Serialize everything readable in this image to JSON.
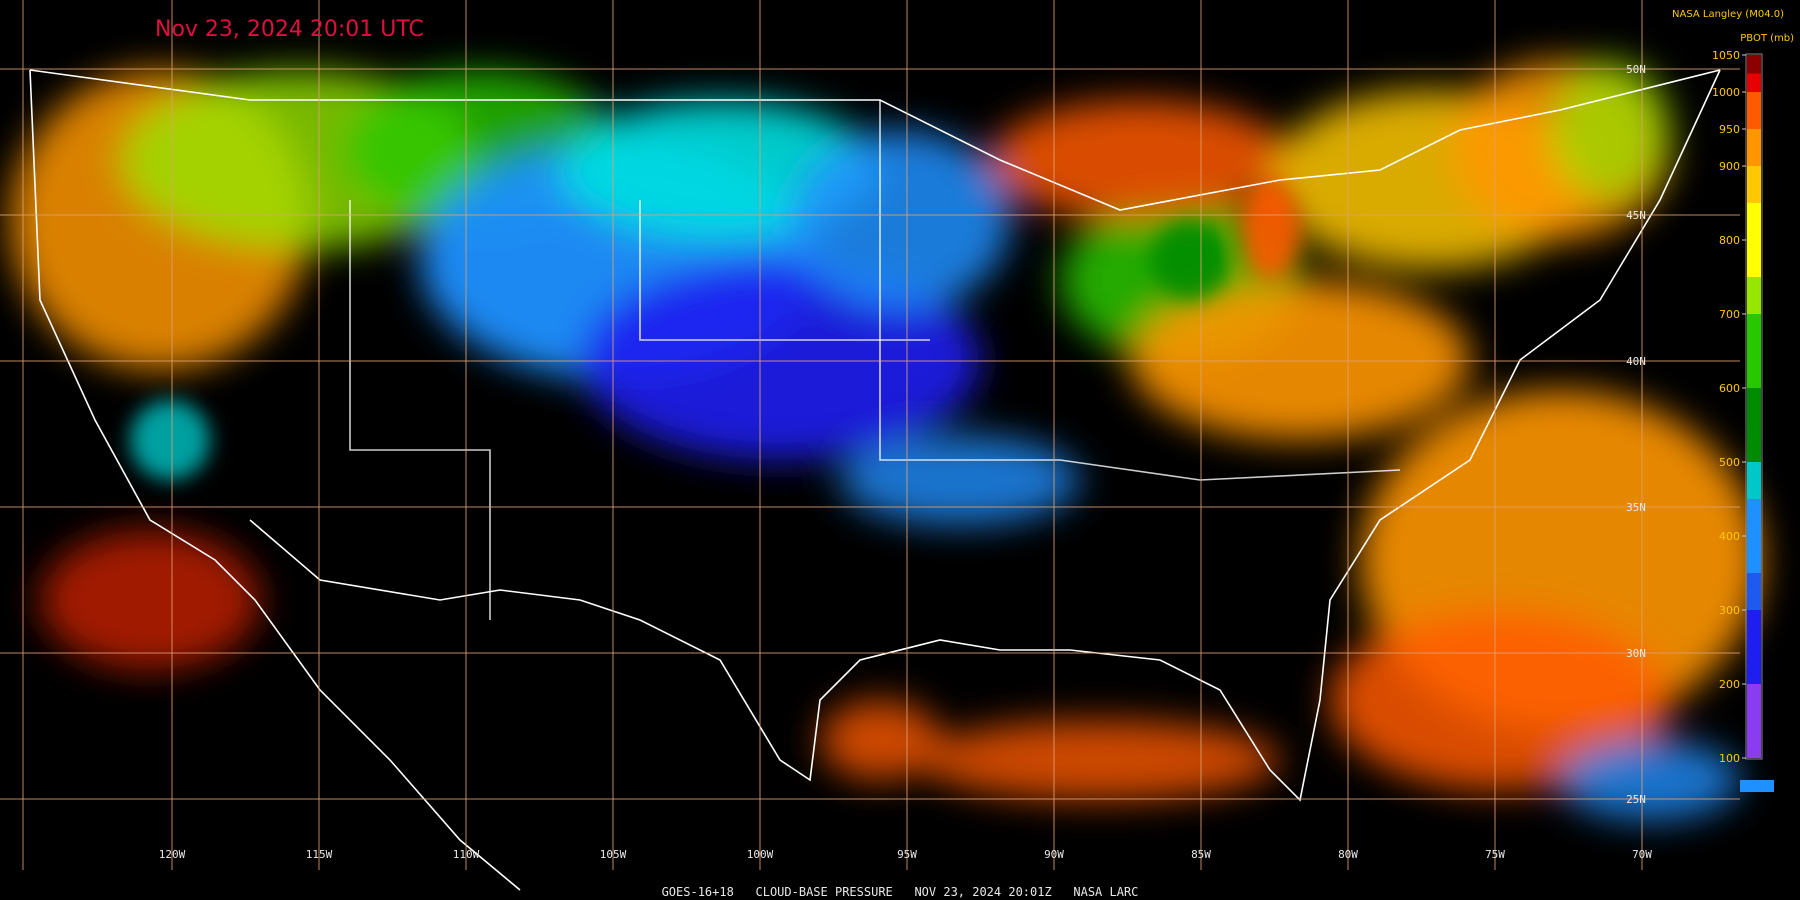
{
  "title": "Nov 23, 2024 20:01 UTC",
  "attribution": "NASA Langley (M04.0)",
  "footer": "GOES-16+18   CLOUD-BASE PRESSURE   NOV 23, 2024 20:01Z   NASA LARC",
  "colorbar": {
    "label": "PBOT (mb)",
    "range": [
      100,
      1050
    ],
    "ticks": [
      1050,
      1000,
      950,
      900,
      800,
      700,
      600,
      500,
      400,
      300,
      200,
      100
    ],
    "bands": [
      {
        "from": 100,
        "to": 200,
        "color": "#8a3cf0"
      },
      {
        "from": 200,
        "to": 300,
        "color": "#1e1ef0"
      },
      {
        "from": 300,
        "to": 350,
        "color": "#1e5af0"
      },
      {
        "from": 350,
        "to": 450,
        "color": "#1e90ff"
      },
      {
        "from": 450,
        "to": 500,
        "color": "#00c8c8"
      },
      {
        "from": 500,
        "to": 600,
        "color": "#008c00"
      },
      {
        "from": 600,
        "to": 700,
        "color": "#28c800"
      },
      {
        "from": 700,
        "to": 750,
        "color": "#96e600"
      },
      {
        "from": 750,
        "to": 850,
        "color": "#ffff00"
      },
      {
        "from": 850,
        "to": 900,
        "color": "#ffc800"
      },
      {
        "from": 900,
        "to": 950,
        "color": "#ff9600"
      },
      {
        "from": 950,
        "to": 1000,
        "color": "#ff5a00"
      },
      {
        "from": 1000,
        "to": 1025,
        "color": "#e60000"
      },
      {
        "from": 1025,
        "to": 1050,
        "color": "#8c0000"
      }
    ]
  },
  "longitudes": [
    {
      "value": -120,
      "label": "120W"
    },
    {
      "value": -115,
      "label": "115W"
    },
    {
      "value": -110,
      "label": "110W"
    },
    {
      "value": -105,
      "label": "105W"
    },
    {
      "value": -100,
      "label": "100W"
    },
    {
      "value": -95,
      "label": "95W"
    },
    {
      "value": -90,
      "label": "90W"
    },
    {
      "value": -85,
      "label": "85W"
    },
    {
      "value": -80,
      "label": "80W"
    },
    {
      "value": -75,
      "label": "75W"
    },
    {
      "value": -70,
      "label": "70W"
    }
  ],
  "latitudes": [
    {
      "value": 50,
      "label": "50N"
    },
    {
      "value": 45,
      "label": "45N"
    },
    {
      "value": 40,
      "label": "40N"
    },
    {
      "value": 35,
      "label": "35N"
    },
    {
      "value": 30,
      "label": "30N"
    },
    {
      "value": 25,
      "label": "25N"
    }
  ]
}
